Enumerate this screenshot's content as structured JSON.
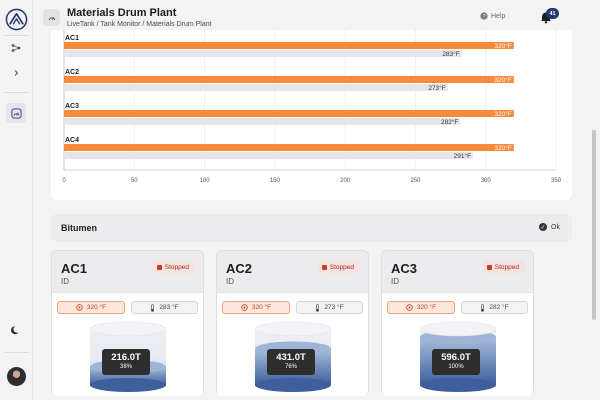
{
  "header": {
    "title": "Materials Drum Plant",
    "breadcrumb": "LiveTank / Tank Monitor / Materials Drum Plant",
    "help_label": "Help",
    "notification_count": "41"
  },
  "colors": {
    "accent_orange": "#f78a3c",
    "secondary_gray": "#e6e6e8",
    "badge_navy": "#23386b",
    "stopped_red": "#c3402c"
  },
  "chart_data": {
    "type": "bar",
    "orientation": "horizontal",
    "categories": [
      "AC1",
      "AC2",
      "AC3",
      "AC4"
    ],
    "series": [
      {
        "values": [
          320,
          320,
          320,
          320
        ],
        "labels": [
          "320°F",
          "320°F",
          "320°F",
          "320°F"
        ]
      },
      {
        "values": [
          283,
          273,
          282,
          291
        ],
        "labels": [
          "283°F",
          "273°F",
          "282°F",
          "291°F"
        ]
      }
    ],
    "xlim": [
      0,
      350
    ],
    "xticks": [
      "0",
      "50",
      "100",
      "150",
      "200",
      "250",
      "300",
      "350"
    ],
    "grid": true
  },
  "section": {
    "title": "Bitumen",
    "status_label": "Ok"
  },
  "tanks": [
    {
      "name": "AC1",
      "subtitle": "ID",
      "status": "Stopped",
      "target_temp": "320 °F",
      "current_temp": "283 °F",
      "amount": "216.0T",
      "percent": "38%",
      "fill_fraction": 0.38
    },
    {
      "name": "AC2",
      "subtitle": "ID",
      "status": "Stopped",
      "target_temp": "320 °F",
      "current_temp": "273 °F",
      "amount": "431.0T",
      "percent": "76%",
      "fill_fraction": 0.76
    },
    {
      "name": "AC3",
      "subtitle": "ID",
      "status": "Stopped",
      "target_temp": "320 °F",
      "current_temp": "282 °F",
      "amount": "596.0T",
      "percent": "100%",
      "fill_fraction": 1.0
    }
  ],
  "icons": {
    "logo": "livetank-logo-icon",
    "nodes": "network-icon",
    "expand": "chevron-right-icon",
    "dashboard": "gauge-icon",
    "theme": "moon-icon",
    "help": "help-circle-icon",
    "bell": "bell-icon"
  }
}
